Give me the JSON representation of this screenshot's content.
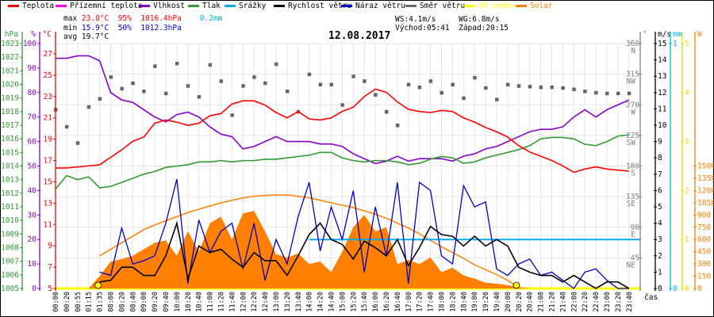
{
  "legend": [
    {
      "label": "Teplota",
      "color": "#ff0000"
    },
    {
      "label": "Přízemní teplota",
      "color": "#ff00ff"
    },
    {
      "label": "Vlhkost",
      "color": "#8800cc"
    },
    {
      "label": "Tlak",
      "color": "#339933"
    },
    {
      "label": "Srážky",
      "color": "#00b0f0"
    },
    {
      "label": "Rychlost větru",
      "color": "#000000"
    },
    {
      "label": "Náraz větru",
      "color": "#0000cc"
    },
    {
      "label": "Směr větru",
      "color": "#666666"
    },
    {
      "label": "UV index",
      "color": "#ffff00"
    },
    {
      "label": "Solar",
      "color": "#ff8000"
    }
  ],
  "stats": {
    "max_label": "max",
    "max_temp": "23.8°C",
    "max_hum": "95%",
    "max_press": "1016.4hPa",
    "rain": "0.2mm",
    "min_label": "min",
    "min_temp": "15.9°C",
    "min_hum": "50%",
    "min_press": "1012.3hPa",
    "avg_label": "avg",
    "avg_temp": "19.7°C",
    "ws": "WS:4.1m/s",
    "wg": "WG:6.8m/s",
    "sunrise": "Východ:05:41",
    "sunset": "Západ:20:15"
  },
  "chart_data": {
    "type": "line",
    "title": "12.08.2017",
    "xlabel": "čas",
    "grid": true,
    "legend_position": "top",
    "x": [
      "00:00",
      "00:20",
      "00:55",
      "01:15",
      "01:35",
      "08:00",
      "08:20",
      "08:40",
      "09:00",
      "09:20",
      "09:40",
      "10:00",
      "10:20",
      "10:40",
      "11:00",
      "11:20",
      "11:40",
      "12:00",
      "12:20",
      "12:40",
      "13:00",
      "13:20",
      "13:40",
      "14:00",
      "14:20",
      "14:40",
      "15:00",
      "15:20",
      "15:40",
      "16:00",
      "16:20",
      "16:40",
      "17:00",
      "17:20",
      "17:40",
      "18:00",
      "18:20",
      "18:40",
      "19:00",
      "19:20",
      "19:40",
      "20:00",
      "20:20",
      "20:40",
      "21:00",
      "21:20",
      "21:40",
      "22:00",
      "22:20",
      "22:40",
      "23:00",
      "23:20",
      "23:40"
    ],
    "axes": {
      "pressure": {
        "unit": "hPa",
        "range": [
          1005,
          1023
        ],
        "ticks": [
          1005,
          1006,
          1007,
          1008,
          1009,
          1010,
          1011,
          1012,
          1013,
          1014,
          1015,
          1016,
          1017,
          1018,
          1019,
          1020,
          1021,
          1022,
          1023
        ],
        "color": "#339933"
      },
      "humidity": {
        "unit": "%",
        "range": [
          0,
          100
        ],
        "ticks": [
          0,
          10,
          20,
          30,
          40,
          50,
          60,
          70,
          80,
          90,
          100
        ],
        "color": "#8800cc"
      },
      "temperature": {
        "unit": "°C",
        "range": [
          5,
          27
        ],
        "ticks": [
          5,
          7,
          9,
          11,
          13,
          15,
          17,
          19,
          21,
          23,
          25,
          27
        ],
        "color": "#ff0000"
      },
      "direction": {
        "unit": "°",
        "range": [
          0,
          360
        ],
        "ticks": [
          45,
          90,
          135,
          180,
          225,
          270,
          315,
          360
        ],
        "compass": [
          "NE",
          "E",
          "SE",
          "S",
          "SW",
          "W",
          "NW",
          "N"
        ],
        "color": "#808080"
      },
      "wind": {
        "unit": "m/s",
        "range": [
          0,
          15
        ],
        "ticks": [
          0,
          1,
          2,
          3,
          4,
          5,
          6,
          7,
          8,
          9,
          10,
          11,
          12,
          13,
          14,
          15
        ],
        "color": "#000000"
      },
      "rain": {
        "unit": "mm",
        "range": [
          0,
          1
        ],
        "ticks": [
          0,
          1
        ],
        "color": "#00b0f0"
      },
      "uv": {
        "unit": "",
        "range": [
          0,
          5
        ],
        "ticks": [
          0,
          1,
          2,
          3,
          4,
          5
        ],
        "color": "#ffff00"
      },
      "solar": {
        "unit": "W",
        "range": [
          0,
          3000
        ],
        "ticks": [
          0,
          150,
          300,
          450,
          600,
          750,
          900,
          1050,
          1200,
          1350,
          1500
        ],
        "color": "#ff8000"
      }
    },
    "series": [
      {
        "name": "Teplota",
        "axis": "temperature",
        "values": [
          16.3,
          16.3,
          16.4,
          16.5,
          16.6,
          17.3,
          18.0,
          18.8,
          19.2,
          20.5,
          20.8,
          20.6,
          20.3,
          20.5,
          21.2,
          21.4,
          22.3,
          22.6,
          22.6,
          22.2,
          21.5,
          21.0,
          21.6,
          20.9,
          20.8,
          21.0,
          21.6,
          22.0,
          23.0,
          23.7,
          23.4,
          22.5,
          21.8,
          21.6,
          21.5,
          21.7,
          21.6,
          21.0,
          20.6,
          20.1,
          19.7,
          19.2,
          18.4,
          17.8,
          17.4,
          17.0,
          16.5,
          15.9,
          16.2,
          16.4,
          16.2,
          16.1,
          16.0
        ]
      },
      {
        "name": "Vlhkost",
        "axis": "humidity",
        "values": [
          94,
          94,
          95,
          95,
          93,
          80,
          77,
          76,
          73,
          70,
          68,
          71,
          72,
          70,
          66,
          63,
          62,
          57,
          58,
          60,
          62,
          60,
          60,
          60,
          59,
          59,
          58,
          55,
          53,
          51,
          52,
          54,
          52,
          53,
          53,
          53,
          52,
          54,
          55,
          57,
          58,
          60,
          62,
          64,
          65,
          65,
          66,
          70,
          73,
          70,
          73,
          75,
          77
        ]
      },
      {
        "name": "Tlak",
        "axis": "pressure",
        "values": [
          1012.3,
          1013.3,
          1013.0,
          1013.2,
          1012.4,
          1012.5,
          1012.8,
          1013.1,
          1013.4,
          1013.6,
          1013.9,
          1014.0,
          1014.1,
          1014.3,
          1014.3,
          1014.4,
          1014.3,
          1014.4,
          1014.4,
          1014.5,
          1014.5,
          1014.6,
          1014.7,
          1014.8,
          1015.0,
          1015.0,
          1014.6,
          1014.4,
          1014.3,
          1014.4,
          1014.4,
          1014.3,
          1014.1,
          1014.2,
          1014.5,
          1014.7,
          1014.6,
          1014.2,
          1014.3,
          1014.6,
          1014.8,
          1015.0,
          1015.2,
          1015.5,
          1016.0,
          1016.1,
          1016.1,
          1016.0,
          1015.6,
          1015.5,
          1015.8,
          1016.2,
          1016.3
        ]
      },
      {
        "name": "Srážky",
        "axis": "rain",
        "values": [
          0,
          0,
          0,
          0,
          0,
          0,
          0,
          0,
          0,
          0,
          0,
          0,
          0,
          0,
          0,
          0,
          0,
          0,
          0,
          0,
          0,
          0,
          0,
          0.2,
          0.2,
          0.2,
          0.2,
          0.2,
          0.2,
          0.2,
          0.2,
          0.2,
          0.2,
          0.2,
          0.2,
          0.2,
          0.2,
          0.2,
          0.2,
          0.2,
          0.2,
          0.2,
          0.2,
          0.2,
          0.2,
          0.2,
          0.2,
          0.2,
          0.2,
          0.2,
          0.2,
          0.2,
          0.2
        ]
      },
      {
        "name": "Rychlost větru",
        "axis": "wind",
        "values": [
          null,
          null,
          null,
          null,
          0.4,
          0.5,
          1.3,
          1.3,
          0.8,
          0.8,
          2.0,
          4.0,
          0.6,
          2.6,
          2.2,
          2.4,
          1.8,
          1.3,
          2.2,
          1.7,
          1.7,
          0.8,
          2.0,
          3.3,
          4.0,
          3.0,
          2.7,
          1.8,
          2.9,
          2.5,
          2.0,
          3.0,
          1.4,
          2.5,
          3.8,
          3.3,
          3.2,
          2.6,
          3.2,
          2.6,
          3.0,
          2.6,
          1.3,
          1.0,
          0.8,
          0.8,
          0.4,
          0.8,
          0.4,
          0,
          0.4,
          0.4,
          0
        ]
      },
      {
        "name": "Náraz větru",
        "axis": "wind",
        "values": [
          null,
          null,
          null,
          null,
          1.0,
          0.8,
          3.7,
          1.5,
          1.7,
          2.0,
          4.0,
          6.7,
          0.3,
          4.2,
          2.2,
          3.5,
          4.0,
          1.2,
          4.0,
          0.5,
          3.0,
          1.5,
          4.4,
          6.5,
          2.3,
          5.0,
          3.0,
          6.0,
          1.0,
          5.0,
          2.0,
          6.5,
          0.3,
          6.5,
          6.0,
          2.0,
          1.5,
          6.3,
          5.0,
          5.3,
          1.2,
          0.8,
          1.5,
          1.8,
          0.8,
          1.0,
          0.5,
          0,
          1.0,
          1.2,
          0.5,
          0,
          0
        ]
      },
      {
        "name": "Směr větru",
        "axis": "direction",
        "type": "scatter",
        "values": [
          263,
          238,
          214,
          267,
          279,
          311,
          294,
          302,
          290,
          327,
          287,
          331,
          298,
          282,
          329,
          305,
          255,
          298,
          311,
          302,
          330,
          290,
          260,
          315,
          300,
          300,
          270,
          312,
          305,
          285,
          260,
          240,
          300,
          296,
          305,
          288,
          300,
          280,
          310,
          295,
          278,
          300,
          298,
          297,
          296,
          296,
          295,
          293,
          290,
          288,
          287,
          287,
          287
        ]
      },
      {
        "name": "UV index",
        "axis": "uv",
        "values": [
          0,
          0,
          0,
          0,
          0,
          0,
          0,
          0,
          0,
          0,
          0,
          0,
          0,
          0,
          0,
          0,
          0,
          0,
          0,
          0,
          0,
          0,
          0,
          0,
          0,
          0,
          0,
          0,
          0,
          0,
          0,
          0,
          0,
          0,
          0,
          0,
          0,
          0,
          0,
          0,
          0,
          0,
          0,
          0,
          0,
          0,
          0,
          0,
          0,
          0,
          0,
          0,
          0
        ]
      },
      {
        "name": "Solar",
        "axis": "solar",
        "type": "area",
        "values": [
          0,
          0,
          0,
          0,
          150,
          330,
          360,
          400,
          480,
          560,
          590,
          400,
          700,
          450,
          800,
          880,
          600,
          920,
          950,
          700,
          420,
          380,
          430,
          300,
          330,
          200,
          450,
          750,
          900,
          700,
          750,
          300,
          350,
          300,
          380,
          200,
          255,
          160,
          120,
          70,
          60,
          40,
          20,
          0,
          0,
          0,
          0,
          0,
          0,
          0,
          0,
          0,
          0
        ]
      },
      {
        "axis": "solar",
        "values": [
          null,
          null,
          null,
          null,
          400,
          480,
          560,
          640,
          720,
          780,
          830,
          880,
          930,
          970,
          1010,
          1050,
          1080,
          1110,
          1130,
          1140,
          1145,
          1145,
          1130,
          1110,
          1080,
          1050,
          1020,
          990,
          950,
          910,
          860,
          800,
          740,
          670,
          590,
          510,
          440,
          370,
          290,
          230,
          170,
          100,
          10,
          null,
          null,
          null,
          null,
          null,
          null,
          null,
          null,
          null,
          null
        ]
      }
    ],
    "markers": [
      {
        "label": "Východ",
        "at": "01:35"
      },
      {
        "label": "Západ",
        "at": "20:15"
      }
    ]
  }
}
